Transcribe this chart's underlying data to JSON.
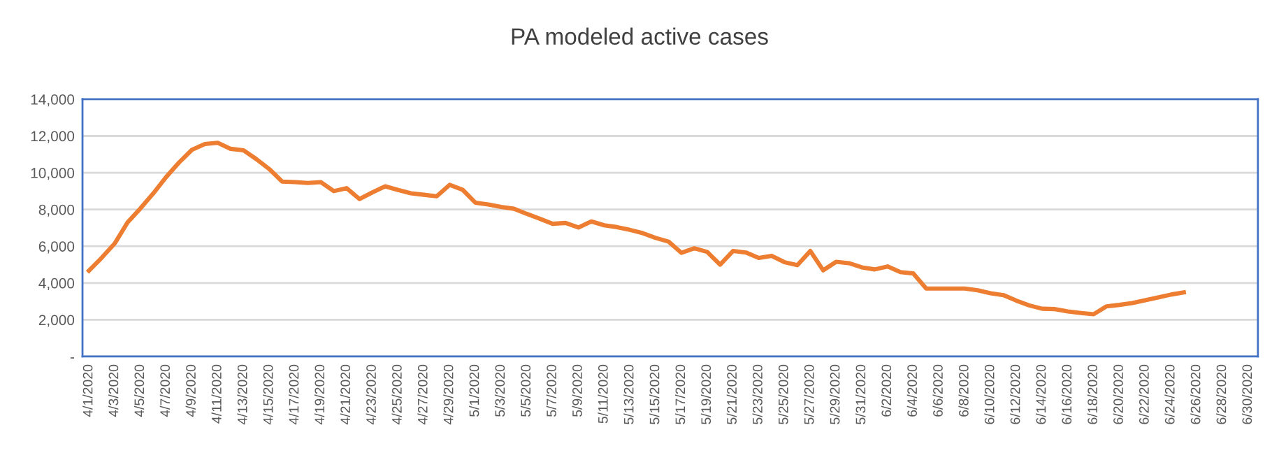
{
  "chart_data": {
    "type": "line",
    "title": "PA modeled active cases",
    "x": [
      "2020-04-01",
      "2020-04-02",
      "2020-04-03",
      "2020-04-04",
      "2020-04-05",
      "2020-04-06",
      "2020-04-07",
      "2020-04-08",
      "2020-04-09",
      "2020-04-10",
      "2020-04-11",
      "2020-04-12",
      "2020-04-13",
      "2020-04-14",
      "2020-04-15",
      "2020-04-16",
      "2020-04-17",
      "2020-04-18",
      "2020-04-19",
      "2020-04-20",
      "2020-04-21",
      "2020-04-22",
      "2020-04-23",
      "2020-04-24",
      "2020-04-25",
      "2020-04-26",
      "2020-04-27",
      "2020-04-28",
      "2020-04-29",
      "2020-04-30",
      "2020-05-01",
      "2020-05-02",
      "2020-05-03",
      "2020-05-04",
      "2020-05-05",
      "2020-05-06",
      "2020-05-07",
      "2020-05-08",
      "2020-05-09",
      "2020-05-10",
      "2020-05-11",
      "2020-05-12",
      "2020-05-13",
      "2020-05-14",
      "2020-05-15",
      "2020-05-16",
      "2020-05-17",
      "2020-05-18",
      "2020-05-19",
      "2020-05-20",
      "2020-05-21",
      "2020-05-22",
      "2020-05-23",
      "2020-05-24",
      "2020-05-25",
      "2020-05-26",
      "2020-05-27",
      "2020-05-28",
      "2020-05-29",
      "2020-05-30",
      "2020-05-31",
      "2020-06-01",
      "2020-06-02",
      "2020-06-03",
      "2020-06-04",
      "2020-06-05",
      "2020-06-06",
      "2020-06-07",
      "2020-06-08",
      "2020-06-09",
      "2020-06-10",
      "2020-06-11",
      "2020-06-12",
      "2020-06-13",
      "2020-06-14",
      "2020-06-15",
      "2020-06-16",
      "2020-06-17",
      "2020-06-18",
      "2020-06-19",
      "2020-06-20",
      "2020-06-21",
      "2020-06-22",
      "2020-06-23",
      "2020-06-24",
      "2020-06-25"
    ],
    "series": [
      {
        "color": "#ed7d31",
        "values": [
          4670,
          5380,
          6150,
          7300,
          8060,
          8880,
          9770,
          10560,
          11250,
          11560,
          11630,
          11300,
          11220,
          10740,
          10200,
          9520,
          9490,
          9440,
          9490,
          9000,
          9160,
          8570,
          8930,
          9260,
          9060,
          8880,
          8800,
          8720,
          9340,
          9080,
          8370,
          8270,
          8140,
          8040,
          7760,
          7500,
          7220,
          7270,
          7020,
          7350,
          7140,
          7040,
          6890,
          6710,
          6450,
          6250,
          5640,
          5890,
          5690,
          5000,
          5740,
          5660,
          5360,
          5480,
          5130,
          4970,
          5740,
          4690,
          5150,
          5080,
          4850,
          4740,
          4900,
          4590,
          4520,
          3700,
          3700,
          3700,
          3700,
          3600,
          3440,
          3340,
          3040,
          2780,
          2600,
          2580,
          2450,
          2370,
          2300,
          2730,
          2810,
          2910,
          3060,
          3210,
          3370,
          3490
        ]
      }
    ],
    "xlim": [
      "2020-03-31T12:00",
      "2020-06-30T18:00"
    ],
    "xticks": [
      {
        "value": "2020-04-01",
        "label": "4/1/2020"
      },
      {
        "value": "2020-04-03",
        "label": "4/3/2020"
      },
      {
        "value": "2020-04-05",
        "label": "4/5/2020"
      },
      {
        "value": "2020-04-07",
        "label": "4/7/2020"
      },
      {
        "value": "2020-04-09",
        "label": "4/9/2020"
      },
      {
        "value": "2020-04-11",
        "label": "4/11/2020"
      },
      {
        "value": "2020-04-13",
        "label": "4/13/2020"
      },
      {
        "value": "2020-04-15",
        "label": "4/15/2020"
      },
      {
        "value": "2020-04-17",
        "label": "4/17/2020"
      },
      {
        "value": "2020-04-19",
        "label": "4/19/2020"
      },
      {
        "value": "2020-04-21",
        "label": "4/21/2020"
      },
      {
        "value": "2020-04-23",
        "label": "4/23/2020"
      },
      {
        "value": "2020-04-25",
        "label": "4/25/2020"
      },
      {
        "value": "2020-04-27",
        "label": "4/27/2020"
      },
      {
        "value": "2020-04-29",
        "label": "4/29/2020"
      },
      {
        "value": "2020-05-01",
        "label": "5/1/2020"
      },
      {
        "value": "2020-05-03",
        "label": "5/3/2020"
      },
      {
        "value": "2020-05-05",
        "label": "5/5/2020"
      },
      {
        "value": "2020-05-07",
        "label": "5/7/2020"
      },
      {
        "value": "2020-05-09",
        "label": "5/9/2020"
      },
      {
        "value": "2020-05-11",
        "label": "5/11/2020"
      },
      {
        "value": "2020-05-13",
        "label": "5/13/2020"
      },
      {
        "value": "2020-05-15",
        "label": "5/15/2020"
      },
      {
        "value": "2020-05-17",
        "label": "5/17/2020"
      },
      {
        "value": "2020-05-19",
        "label": "5/19/2020"
      },
      {
        "value": "2020-05-21",
        "label": "5/21/2020"
      },
      {
        "value": "2020-05-23",
        "label": "5/23/2020"
      },
      {
        "value": "2020-05-25",
        "label": "5/25/2020"
      },
      {
        "value": "2020-05-27",
        "label": "5/27/2020"
      },
      {
        "value": "2020-05-29",
        "label": "5/29/2020"
      },
      {
        "value": "2020-05-31",
        "label": "5/31/2020"
      },
      {
        "value": "2020-06-02",
        "label": "6/2/2020"
      },
      {
        "value": "2020-06-04",
        "label": "6/4/2020"
      },
      {
        "value": "2020-06-06",
        "label": "6/6/2020"
      },
      {
        "value": "2020-06-08",
        "label": "6/8/2020"
      },
      {
        "value": "2020-06-10",
        "label": "6/10/2020"
      },
      {
        "value": "2020-06-12",
        "label": "6/12/2020"
      },
      {
        "value": "2020-06-14",
        "label": "6/14/2020"
      },
      {
        "value": "2020-06-16",
        "label": "6/16/2020"
      },
      {
        "value": "2020-06-18",
        "label": "6/18/2020"
      },
      {
        "value": "2020-06-20",
        "label": "6/20/2020"
      },
      {
        "value": "2020-06-22",
        "label": "6/22/2020"
      },
      {
        "value": "2020-06-24",
        "label": "6/24/2020"
      },
      {
        "value": "2020-06-26",
        "label": "6/26/2020"
      },
      {
        "value": "2020-06-28",
        "label": "6/28/2020"
      },
      {
        "value": "2020-06-30",
        "label": "6/30/2020"
      }
    ],
    "ylim": [
      0,
      14000
    ],
    "yticks": [
      {
        "value": 0,
        "label": "-"
      },
      {
        "value": 2000,
        "label": "2,000"
      },
      {
        "value": 4000,
        "label": "4,000"
      },
      {
        "value": 6000,
        "label": "6,000"
      },
      {
        "value": 8000,
        "label": "8,000"
      },
      {
        "value": 10000,
        "label": "10,000"
      },
      {
        "value": 12000,
        "label": "12,000"
      },
      {
        "value": 14000,
        "label": "14,000"
      }
    ],
    "grid": "y",
    "marker": "none",
    "line_style": "solid"
  }
}
